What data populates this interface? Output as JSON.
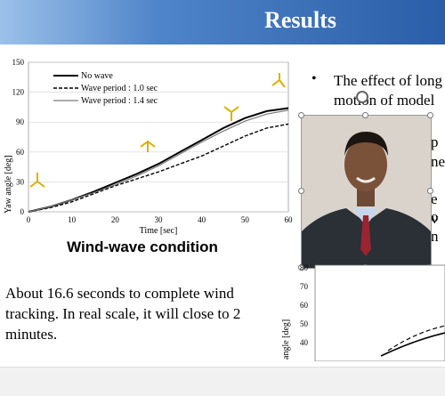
{
  "slide": {
    "title": "Results",
    "caption": "Wind-wave condition",
    "paragraph": "About 16.6 seconds to complete wind tracking. In real scale, it will close to 2 minutes.",
    "bullet": {
      "dot": "•",
      "line1": "The effect of long",
      "line2": "motion of model"
    },
    "fragments": [
      "p",
      "ne",
      "e o",
      "v n"
    ],
    "bottom_chart": {
      "ylabel": "angle [deg]",
      "ticks": [
        "80",
        "70",
        "60",
        "50",
        "40"
      ]
    }
  },
  "chart_data": {
    "type": "line",
    "xlabel": "Time [sec]",
    "ylabel": "Yaw angle [deg]",
    "xlim": [
      0,
      60
    ],
    "ylim": [
      0,
      150
    ],
    "xticks": [
      "0",
      "10",
      "20",
      "30",
      "40",
      "50",
      "60"
    ],
    "yticks": [
      "0",
      "30",
      "60",
      "90",
      "120",
      "150"
    ],
    "legend": "top-left",
    "series": [
      {
        "name": "No wave",
        "style": "solid-bold",
        "color": "#000000",
        "x": [
          0,
          5,
          10,
          15,
          20,
          25,
          30,
          35,
          40,
          45,
          50,
          55,
          60
        ],
        "y": [
          0,
          5,
          12,
          20,
          29,
          38,
          48,
          60,
          72,
          84,
          94,
          101,
          104
        ]
      },
      {
        "name": "Wave period : 1.0 sec",
        "style": "dashed",
        "color": "#000000",
        "x": [
          0,
          5,
          10,
          15,
          20,
          25,
          30,
          35,
          40,
          45,
          50,
          55,
          60
        ],
        "y": [
          0,
          4,
          10,
          18,
          26,
          33,
          40,
          48,
          56,
          66,
          76,
          84,
          88
        ]
      },
      {
        "name": "Wave period : 1.4 sec",
        "style": "solid-thin",
        "color": "#7a7a7a",
        "x": [
          0,
          5,
          10,
          15,
          20,
          25,
          30,
          35,
          40,
          45,
          50,
          55,
          60
        ],
        "y": [
          0,
          5,
          12,
          19,
          27,
          36,
          46,
          58,
          70,
          81,
          91,
          98,
          102
        ]
      }
    ]
  }
}
